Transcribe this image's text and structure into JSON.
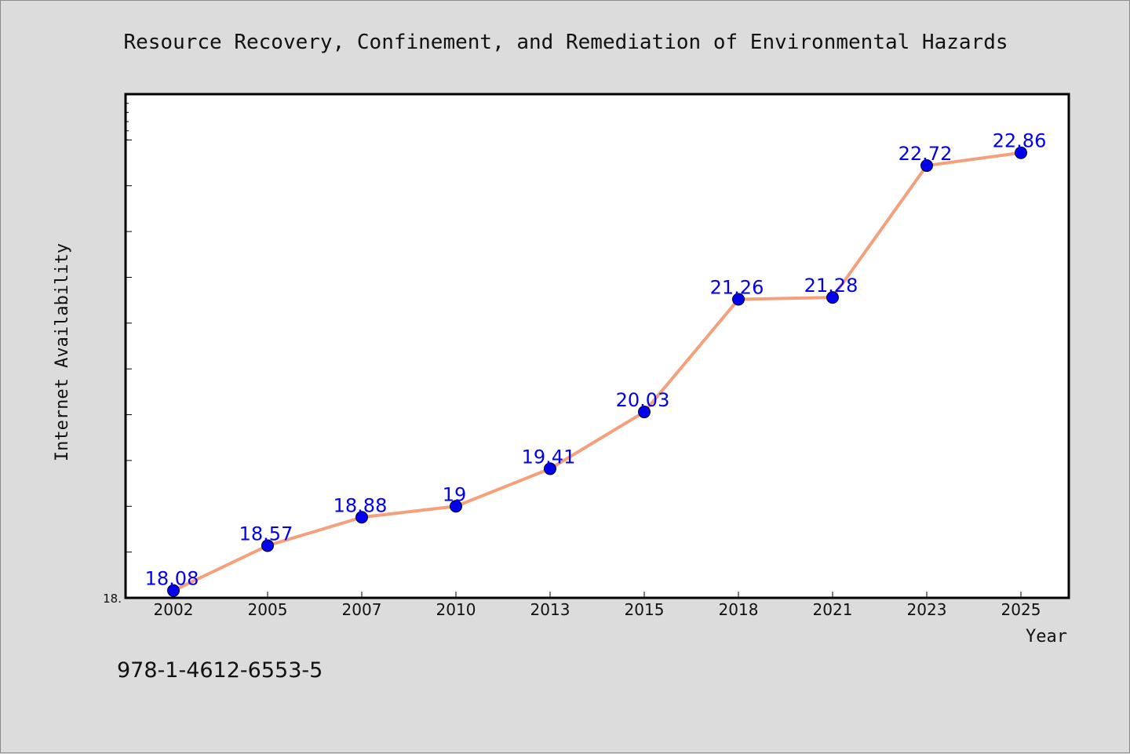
{
  "chart_data": {
    "type": "line",
    "title": "Resource Recovery, Confinement, and Remediation of Environmental Hazards",
    "xlabel": "Year",
    "ylabel": "Internet Availability",
    "categories": [
      "2002",
      "2005",
      "2007",
      "2010",
      "2013",
      "2015",
      "2018",
      "2021",
      "2023",
      "2025"
    ],
    "series": [
      {
        "values": [
          18.08,
          18.57,
          18.88,
          19,
          19.41,
          20.03,
          21.26,
          21.28,
          22.72,
          22.86
        ],
        "data_labels": [
          "18.08",
          "18.57",
          "18.88",
          "19",
          "19.41",
          "20.03",
          "21.26",
          "21.28",
          "22.72",
          "22.86"
        ]
      }
    ],
    "ylim": [
      18,
      23.5
    ],
    "y_tick_label_visible": "18.",
    "grid": false,
    "legend": "none",
    "colors": {
      "line": "#f4a07c",
      "marker": "#0000ee",
      "data_label": "#0000ee",
      "plot_background": "#ffffff",
      "figure_background": "#dcdcdc"
    }
  },
  "footer": {
    "isbn": "978-1-4612-6553-5"
  }
}
